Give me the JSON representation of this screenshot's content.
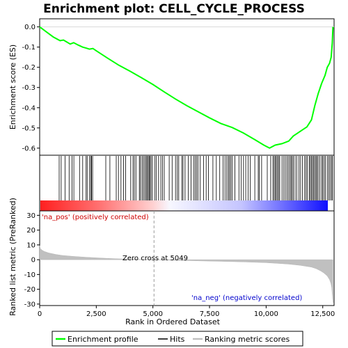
{
  "chart_data": [
    {
      "type": "line",
      "panel": "enrichment-profile",
      "title": "Enrichment plot: CELL_CYCLE_PROCESS",
      "ylabel": "Enrichment score (ES)",
      "xlim": [
        0,
        13000
      ],
      "ylim": [
        -0.635,
        0.04
      ],
      "yticks": [
        0.0,
        -0.1,
        -0.2,
        -0.3,
        -0.4,
        -0.5,
        -0.6
      ],
      "ytick_labels": [
        "0.0",
        "-0.1",
        "-0.2",
        "-0.3",
        "-0.4",
        "-0.5",
        "-0.6"
      ],
      "grid": false,
      "series": [
        {
          "name": "Enrichment profile",
          "color": "#00ff00",
          "x": [
            0,
            300,
            600,
            900,
            1050,
            1200,
            1350,
            1500,
            1700,
            1900,
            2050,
            2200,
            2350,
            2500,
            3000,
            3500,
            4000,
            4500,
            5000,
            5500,
            6000,
            6500,
            7000,
            7500,
            8000,
            8500,
            9000,
            9500,
            9900,
            10150,
            10400,
            10700,
            11000,
            11200,
            11400,
            11600,
            11800,
            12000,
            12150,
            12300,
            12450,
            12600,
            12700,
            12800,
            12870,
            12920,
            12950
          ],
          "y": [
            0.0,
            -0.025,
            -0.05,
            -0.068,
            -0.065,
            -0.075,
            -0.085,
            -0.078,
            -0.09,
            -0.1,
            -0.105,
            -0.11,
            -0.107,
            -0.118,
            -0.155,
            -0.19,
            -0.22,
            -0.252,
            -0.285,
            -0.322,
            -0.357,
            -0.39,
            -0.42,
            -0.45,
            -0.478,
            -0.498,
            -0.525,
            -0.558,
            -0.585,
            -0.6,
            -0.585,
            -0.578,
            -0.565,
            -0.54,
            -0.525,
            -0.51,
            -0.495,
            -0.46,
            -0.39,
            -0.33,
            -0.28,
            -0.24,
            -0.2,
            -0.18,
            -0.15,
            -0.08,
            0.0
          ]
        }
      ]
    },
    {
      "type": "scatter",
      "panel": "hits",
      "series": [
        {
          "name": "Hits",
          "color": "#000000",
          "x": [
            860,
            950,
            1120,
            1300,
            1430,
            1510,
            1760,
            1900,
            2050,
            2100,
            2200,
            2260,
            2290,
            2340,
            2920,
            3100,
            3380,
            3480,
            3590,
            3700,
            3800,
            4020,
            4120,
            4180,
            4250,
            4400,
            4450,
            4520,
            4580,
            4640,
            4700,
            4740,
            4790,
            4830,
            4870,
            4920,
            4980,
            5080,
            5150,
            5250,
            5350,
            5420,
            5500,
            5720,
            5850,
            6000,
            6080,
            6140,
            6280,
            6330,
            6420,
            6560,
            6680,
            6800,
            6870,
            6930,
            6990,
            7080,
            7240,
            7350,
            7450,
            7650,
            7800,
            7950,
            8100,
            8180,
            8260,
            8330,
            8380,
            8440,
            8500,
            8620,
            8800,
            8900,
            9000,
            9100,
            9200,
            9300,
            9500,
            9650,
            9700,
            9800,
            10050,
            10200,
            10300,
            10350,
            10400,
            10450,
            10500,
            10550,
            10600,
            10700,
            10780,
            10850,
            10920,
            10980,
            11050,
            11100,
            11150,
            11200,
            11280,
            11360,
            11450,
            11520,
            11600,
            11700,
            11760,
            11820,
            11900,
            11950,
            12000,
            12050,
            12100,
            12150,
            12200,
            12250,
            12300,
            12370,
            12450,
            12500,
            12560,
            12620,
            12700,
            12760,
            12820,
            12880,
            12920
          ]
        }
      ]
    },
    {
      "type": "area",
      "panel": "ranked-list-metric",
      "xlabel": "Rank in Ordered Dataset",
      "ylabel": "Ranked list metric (PreRanked)",
      "xlim": [
        0,
        13000
      ],
      "ylim": [
        -31,
        33
      ],
      "xticks": [
        0,
        2500,
        5000,
        7500,
        10000,
        12500
      ],
      "xtick_labels": [
        "0",
        "2,500",
        "5,000",
        "7,500",
        "10,000",
        "12,500"
      ],
      "yticks": [
        30,
        20,
        10,
        0,
        -10,
        -20,
        -30
      ],
      "ytick_labels": [
        "30",
        "20",
        "10",
        "0",
        "-10",
        "-20",
        "-30"
      ],
      "zero_cross": 5049,
      "series": [
        {
          "name": "Ranking metric scores",
          "color": "#c0c0c0",
          "x": [
            0,
            30,
            100,
            200,
            400,
            700,
            1000,
            1500,
            2000,
            2500,
            3000,
            3500,
            4000,
            4500,
            5049,
            5500,
            6000,
            7000,
            8000,
            9000,
            10000,
            10500,
            11000,
            11500,
            12000,
            12200,
            12400,
            12550,
            12700,
            12800,
            12860,
            12900,
            12930,
            12950
          ],
          "y": [
            9.5,
            7.5,
            6.5,
            5.6,
            4.6,
            3.6,
            2.9,
            2.2,
            1.7,
            1.3,
            0.9,
            0.6,
            0.35,
            0.15,
            0.0,
            -0.2,
            -0.4,
            -0.8,
            -1.1,
            -1.5,
            -2.0,
            -2.5,
            -3.0,
            -3.8,
            -5.0,
            -6.0,
            -7.5,
            -9.0,
            -11.0,
            -13.5,
            -16.0,
            -19.0,
            -25.0,
            -29.0
          ]
        }
      ]
    }
  ],
  "annotations": {
    "pos_label": "'na_pos' (positively correlated)",
    "neg_label": "'na_neg' (negatively correlated)",
    "zero_cross_label": "Zero cross at 5049"
  },
  "legend": {
    "items": [
      {
        "label": "Enrichment profile",
        "color": "#00ff00"
      },
      {
        "label": "Hits",
        "color": "#000000"
      },
      {
        "label": "Ranking metric scores",
        "color": "#c0c0c0"
      }
    ]
  },
  "colors": {
    "positive": "#ff0000",
    "negative": "#0000ff",
    "pos_annotation": "#cc0000",
    "neg_annotation": "#0000cc"
  }
}
